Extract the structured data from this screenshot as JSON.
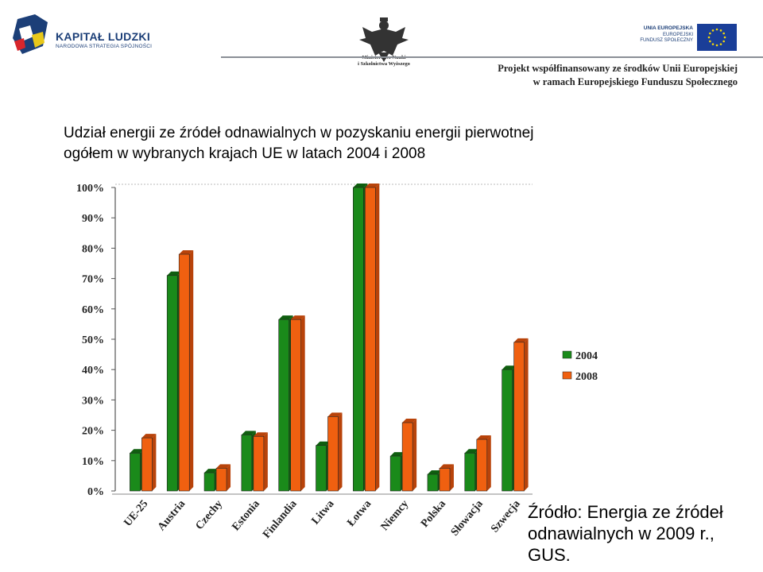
{
  "header": {
    "logo_left_title": "KAPITAŁ LUDZKI",
    "logo_left_subtitle": "NARODOWA STRATEGIA SPÓJNOŚCI",
    "ministry_line1": "Ministerstwo Nauki",
    "ministry_line2": "i Szkolnictwa Wyższego",
    "eu_line1": "UNIA EUROPEJSKA",
    "eu_line2": "EUROPEJSKI",
    "eu_line3": "FUNDUSZ SPOŁECZNY",
    "project_line1": "Projekt współfinansowany ze środków Unii Europejskiej",
    "project_line2": "w ramach Europejskiego Funduszu Społecznego"
  },
  "slide": {
    "title_line1": "Udział energii ze źródeł odnawialnych w pozyskaniu energii pierwotnej",
    "title_line2": "ogółem w wybranych krajach UE w latach 2004 i 2008",
    "source_line1": "Źródło: Energia ze  źródeł",
    "source_line2": "odnawialnych w 2009 r.,",
    "source_line3": "GUS."
  },
  "colors": {
    "series_2004": "#1a8a1a",
    "series_2008": "#f06010",
    "eu_flag": "#1a3e98",
    "logo_blue": "#1c3f78"
  },
  "chart_data": {
    "type": "bar",
    "categories": [
      "UE-25",
      "Austria",
      "Czechy",
      "Estonia",
      "Finlandia",
      "Litwa",
      "Łotwa",
      "Niemcy",
      "Polska",
      "Słowacja",
      "Szwecja"
    ],
    "series": [
      {
        "name": "2004",
        "values": [
          12.5,
          71,
          6,
          18.5,
          56.5,
          15,
          100,
          11.5,
          5.5,
          12.5,
          40
        ]
      },
      {
        "name": "2008",
        "values": [
          17.5,
          78,
          7.5,
          18,
          56.5,
          24.5,
          100,
          22.5,
          7.5,
          17,
          49
        ]
      }
    ],
    "yticks": [
      "0%",
      "10%",
      "20%",
      "30%",
      "40%",
      "50%",
      "60%",
      "70%",
      "80%",
      "90%",
      "100%"
    ],
    "ylim": [
      0,
      100
    ],
    "grid": false,
    "legend_position": "right"
  }
}
